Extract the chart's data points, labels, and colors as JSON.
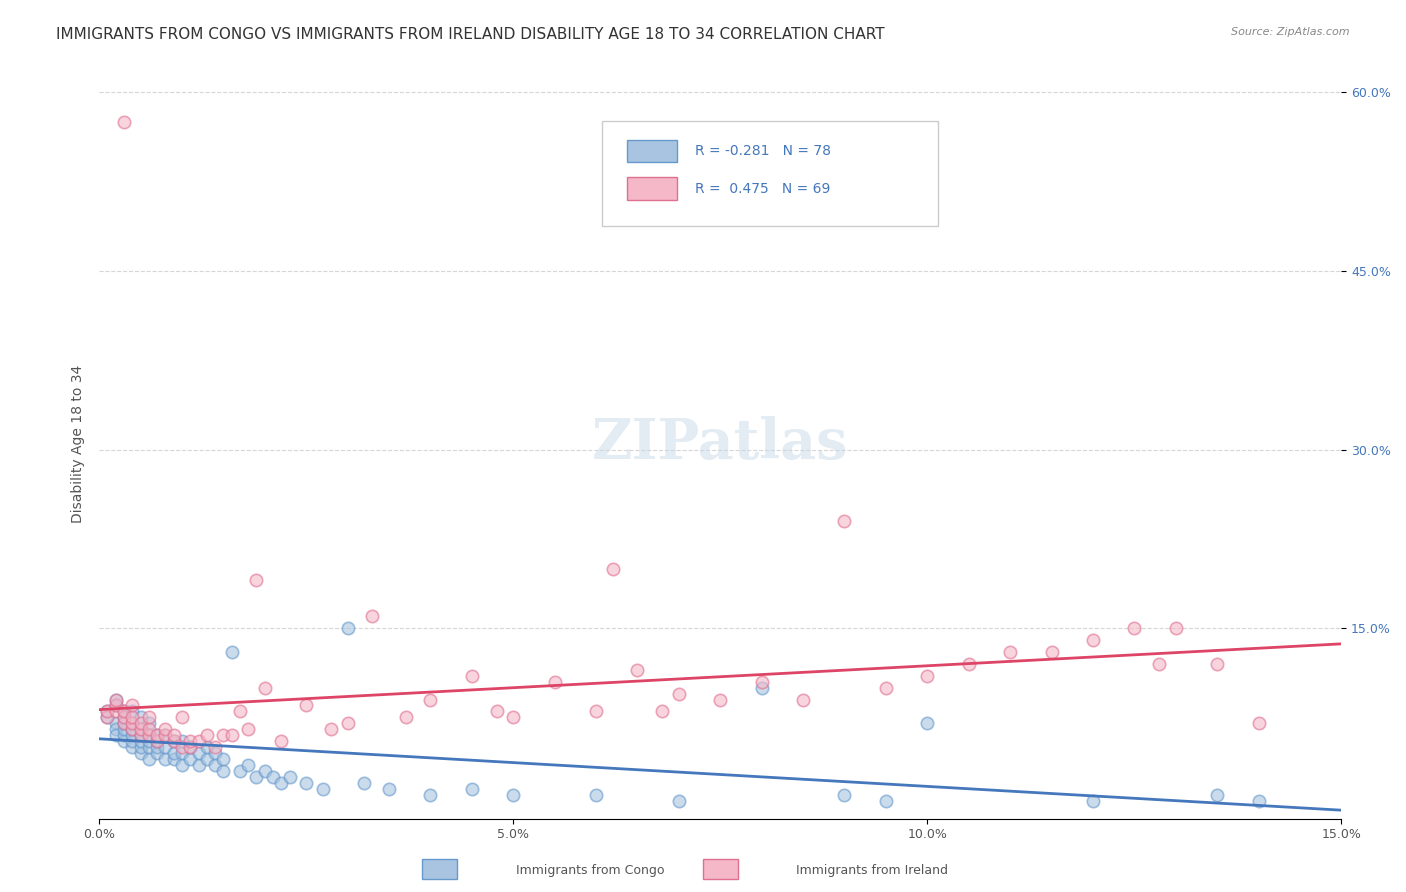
{
  "title": "IMMIGRANTS FROM CONGO VS IMMIGRANTS FROM IRELAND DISABILITY AGE 18 TO 34 CORRELATION CHART",
  "source": "Source: ZipAtlas.com",
  "xlabel": "",
  "ylabel": "Disability Age 18 to 34",
  "xlim": [
    0.0,
    0.15
  ],
  "ylim": [
    -0.01,
    0.62
  ],
  "xtick_labels": [
    "0.0%",
    "5.0%",
    "10.0%",
    "15.0%"
  ],
  "xtick_vals": [
    0.0,
    0.05,
    0.1,
    0.15
  ],
  "ytick_right_labels": [
    "60.0%",
    "45.0%",
    "30.0%",
    "15.0%"
  ],
  "ytick_right_vals": [
    0.6,
    0.45,
    0.3,
    0.15
  ],
  "congo_color": "#a8c4e0",
  "congo_edge_color": "#6699cc",
  "ireland_color": "#f4b8c8",
  "ireland_edge_color": "#e07090",
  "congo_R": -0.281,
  "congo_N": 78,
  "ireland_R": 0.475,
  "ireland_N": 69,
  "line_congo_color": "#4477bb",
  "line_ireland_color": "#dd4466",
  "watermark": "ZIPatlas",
  "legend_R_congo": "R = -0.281",
  "legend_N_congo": "N = 78",
  "legend_R_ireland": "R =  0.475",
  "legend_N_ireland": "N = 69",
  "congo_x": [
    0.001,
    0.001,
    0.002,
    0.002,
    0.002,
    0.002,
    0.002,
    0.003,
    0.003,
    0.003,
    0.003,
    0.003,
    0.003,
    0.004,
    0.004,
    0.004,
    0.004,
    0.004,
    0.004,
    0.005,
    0.005,
    0.005,
    0.005,
    0.005,
    0.005,
    0.006,
    0.006,
    0.006,
    0.006,
    0.006,
    0.007,
    0.007,
    0.007,
    0.007,
    0.008,
    0.008,
    0.008,
    0.009,
    0.009,
    0.009,
    0.01,
    0.01,
    0.01,
    0.011,
    0.011,
    0.012,
    0.012,
    0.013,
    0.013,
    0.014,
    0.014,
    0.015,
    0.015,
    0.016,
    0.017,
    0.018,
    0.019,
    0.02,
    0.021,
    0.022,
    0.023,
    0.025,
    0.027,
    0.03,
    0.032,
    0.035,
    0.04,
    0.045,
    0.05,
    0.06,
    0.07,
    0.08,
    0.09,
    0.095,
    0.1,
    0.12,
    0.135,
    0.14
  ],
  "congo_y": [
    0.075,
    0.08,
    0.07,
    0.065,
    0.06,
    0.09,
    0.085,
    0.055,
    0.06,
    0.065,
    0.07,
    0.075,
    0.08,
    0.05,
    0.055,
    0.06,
    0.065,
    0.07,
    0.08,
    0.045,
    0.05,
    0.055,
    0.06,
    0.065,
    0.075,
    0.04,
    0.05,
    0.055,
    0.06,
    0.07,
    0.045,
    0.05,
    0.055,
    0.06,
    0.04,
    0.05,
    0.06,
    0.04,
    0.045,
    0.055,
    0.035,
    0.045,
    0.055,
    0.04,
    0.05,
    0.035,
    0.045,
    0.04,
    0.05,
    0.035,
    0.045,
    0.03,
    0.04,
    0.13,
    0.03,
    0.035,
    0.025,
    0.03,
    0.025,
    0.02,
    0.025,
    0.02,
    0.015,
    0.15,
    0.02,
    0.015,
    0.01,
    0.015,
    0.01,
    0.01,
    0.005,
    0.1,
    0.01,
    0.005,
    0.07,
    0.005,
    0.01,
    0.005
  ],
  "ireland_x": [
    0.001,
    0.001,
    0.002,
    0.002,
    0.002,
    0.003,
    0.003,
    0.003,
    0.003,
    0.004,
    0.004,
    0.004,
    0.004,
    0.005,
    0.005,
    0.005,
    0.006,
    0.006,
    0.006,
    0.007,
    0.007,
    0.008,
    0.008,
    0.009,
    0.009,
    0.01,
    0.01,
    0.011,
    0.011,
    0.012,
    0.013,
    0.014,
    0.015,
    0.016,
    0.017,
    0.018,
    0.019,
    0.02,
    0.022,
    0.025,
    0.028,
    0.03,
    0.033,
    0.037,
    0.04,
    0.045,
    0.048,
    0.05,
    0.055,
    0.06,
    0.062,
    0.065,
    0.068,
    0.07,
    0.075,
    0.08,
    0.085,
    0.09,
    0.095,
    0.1,
    0.105,
    0.11,
    0.115,
    0.12,
    0.125,
    0.128,
    0.13,
    0.135,
    0.14
  ],
  "ireland_y": [
    0.075,
    0.08,
    0.08,
    0.085,
    0.09,
    0.07,
    0.075,
    0.08,
    0.575,
    0.065,
    0.07,
    0.075,
    0.085,
    0.06,
    0.065,
    0.07,
    0.06,
    0.065,
    0.075,
    0.055,
    0.06,
    0.06,
    0.065,
    0.055,
    0.06,
    0.05,
    0.075,
    0.05,
    0.055,
    0.055,
    0.06,
    0.05,
    0.06,
    0.06,
    0.08,
    0.065,
    0.19,
    0.1,
    0.055,
    0.085,
    0.065,
    0.07,
    0.16,
    0.075,
    0.09,
    0.11,
    0.08,
    0.075,
    0.105,
    0.08,
    0.2,
    0.115,
    0.08,
    0.095,
    0.09,
    0.105,
    0.09,
    0.24,
    0.1,
    0.11,
    0.12,
    0.13,
    0.13,
    0.14,
    0.15,
    0.12,
    0.15,
    0.12,
    0.07
  ],
  "grid_color": "#cccccc",
  "background_color": "#ffffff",
  "marker_size": 80,
  "marker_alpha": 0.6,
  "title_fontsize": 11,
  "axis_label_fontsize": 10,
  "tick_fontsize": 9,
  "legend_fontsize": 10,
  "watermark_fontsize": 40,
  "watermark_color": "#c8d8e8",
  "watermark_alpha": 0.5
}
